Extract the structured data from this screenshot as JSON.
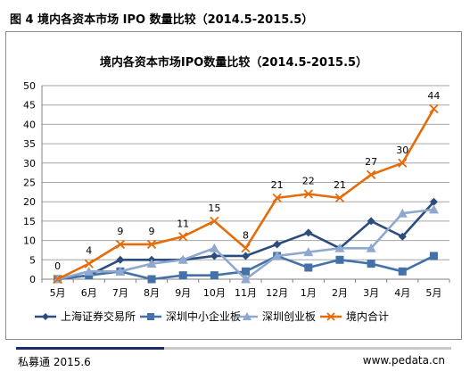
{
  "figure_caption": "图 4  境内各资本市场 IPO 数量比较（2014.5-2015.5）",
  "footer": {
    "left": "私募通 2015.6",
    "right": "www.pedata.cn"
  },
  "chart_data": {
    "type": "line",
    "title": "境内各资本市场IPO数量比较（2014.5-2015.5）",
    "xlabel": "",
    "ylabel": "",
    "categories": [
      "5月",
      "6月",
      "7月",
      "8月",
      "9月",
      "10月",
      "11月",
      "12月",
      "1月",
      "2月",
      "3月",
      "4月",
      "5月"
    ],
    "ylim": [
      0,
      50
    ],
    "yticks": [
      0,
      5,
      10,
      15,
      20,
      25,
      30,
      35,
      40,
      45,
      50
    ],
    "grid": true,
    "legend_position": "bottom",
    "series": [
      {
        "name": "上海证券交易所",
        "color": "#2b4c7e",
        "marker": "diamond",
        "values": [
          0,
          1,
          5,
          5,
          5,
          6,
          6,
          9,
          12,
          8,
          15,
          11,
          20
        ]
      },
      {
        "name": "深圳中小企业板",
        "color": "#4472a8",
        "marker": "square",
        "values": [
          0,
          1,
          2,
          0,
          1,
          1,
          2,
          6,
          3,
          5,
          4,
          2,
          6
        ]
      },
      {
        "name": "深圳创业板",
        "color": "#8ea8d0",
        "marker": "triangle",
        "values": [
          0,
          2,
          2,
          4,
          5,
          8,
          0,
          6,
          7,
          8,
          8,
          17,
          18
        ]
      },
      {
        "name": "境内合计",
        "color": "#e46c0a",
        "marker": "x",
        "values": [
          0,
          4,
          9,
          9,
          11,
          15,
          8,
          21,
          22,
          21,
          27,
          30,
          44
        ],
        "data_labels": [
          "0",
          "4",
          "9",
          "9",
          "11",
          "15",
          "8",
          "21",
          "22",
          "21",
          "27",
          "30",
          "44"
        ]
      }
    ]
  }
}
